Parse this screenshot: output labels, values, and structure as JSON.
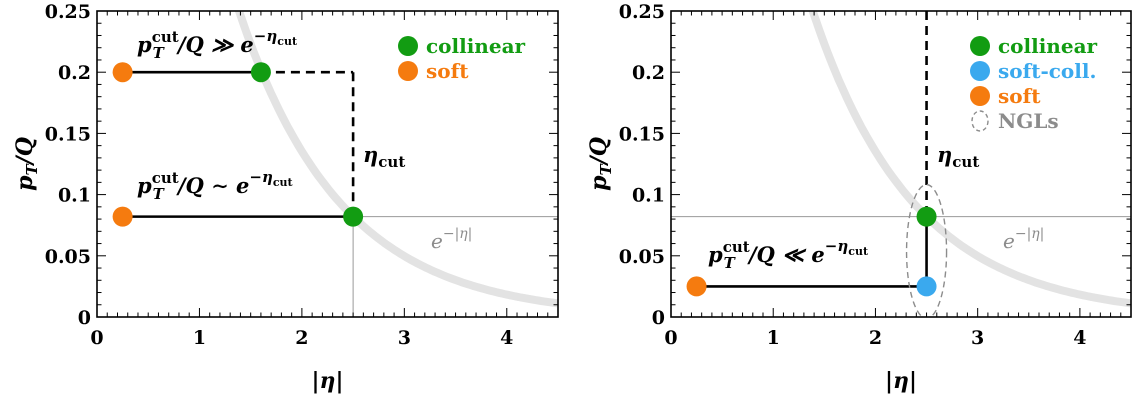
{
  "colors": {
    "collinear": "#129c12",
    "soft": "#f57b0f",
    "soft_coll": "#3aa9ee",
    "ngl": "#8c8c8c",
    "curve": "#e3e3e3",
    "thin_line": "#999999"
  },
  "chart_data": [
    {
      "type": "scatter",
      "xlabel": "|η|",
      "ylabel": "p_T/Q",
      "xlim": [
        0,
        4.5
      ],
      "ylim": [
        0,
        0.25
      ],
      "x_ticks": [
        "0",
        "1",
        "2",
        "3",
        "4"
      ],
      "y_ticks": [
        "0",
        "0.05",
        "0.1",
        "0.15",
        "0.2",
        "0.25"
      ],
      "eta_cut": 2.5,
      "grid": false,
      "legend_position": "top-right",
      "legend": [
        {
          "label": "collinear",
          "color": "collinear"
        },
        {
          "label": "soft",
          "color": "soft"
        }
      ],
      "points": [
        {
          "series": "soft",
          "x": 0.25,
          "y": 0.2
        },
        {
          "series": "collinear",
          "x": 1.6,
          "y": 0.2
        },
        {
          "series": "soft",
          "x": 0.25,
          "y": 0.082
        },
        {
          "series": "collinear",
          "x": 2.5,
          "y": 0.082
        }
      ],
      "solid_segments": [
        {
          "x": [
            0.25,
            1.6
          ],
          "y": [
            0.2,
            0.2
          ]
        },
        {
          "x": [
            0.25,
            2.5
          ],
          "y": [
            0.082,
            0.082
          ]
        }
      ],
      "dashed_segments": [
        {
          "x": [
            1.6,
            2.5
          ],
          "y": [
            0.2,
            0.2
          ]
        },
        {
          "x": [
            2.5,
            2.5
          ],
          "y": [
            0.2,
            0.082
          ]
        }
      ],
      "thin_lines": [
        {
          "x": [
            2.5,
            4.5
          ],
          "y": [
            0.082,
            0.082
          ]
        },
        {
          "x": [
            2.5,
            2.5
          ],
          "y": [
            0.082,
            0
          ]
        }
      ],
      "annotations": {
        "regime": {
          "base": "p",
          "sub": "T",
          "sup": "cut",
          "rest": "/Q ≫ e",
          "exp": "−η",
          "exp_sub": "cut"
        },
        "regime2": {
          "base": "p",
          "sub": "T",
          "sup": "cut",
          "rest": "/Q ∼ e",
          "exp": "−η",
          "exp_sub": "cut"
        },
        "eta_cut": {
          "base": "η",
          "sub": "cut"
        },
        "curve": {
          "base": "e",
          "exp": "−|η|"
        }
      }
    },
    {
      "type": "scatter",
      "xlabel": "|η|",
      "ylabel": "p_T/Q",
      "xlim": [
        0,
        4.5
      ],
      "ylim": [
        0,
        0.25
      ],
      "x_ticks": [
        "0",
        "1",
        "2",
        "3",
        "4"
      ],
      "y_ticks": [
        "0",
        "0.05",
        "0.1",
        "0.15",
        "0.2",
        "0.25"
      ],
      "eta_cut": 2.5,
      "grid": false,
      "legend_position": "top-right",
      "legend": [
        {
          "label": "collinear",
          "color": "collinear"
        },
        {
          "label": "soft-coll.",
          "color": "soft_coll"
        },
        {
          "label": "soft",
          "color": "soft"
        },
        {
          "label": "NGLs",
          "color": "ngl"
        }
      ],
      "points": [
        {
          "series": "soft",
          "x": 0.25,
          "y": 0.025
        },
        {
          "series": "soft-coll.",
          "x": 2.5,
          "y": 0.025
        },
        {
          "series": "collinear",
          "x": 2.5,
          "y": 0.082
        }
      ],
      "solid_segments": [
        {
          "x": [
            0.25,
            2.5
          ],
          "y": [
            0.025,
            0.025
          ]
        },
        {
          "x": [
            2.5,
            2.5
          ],
          "y": [
            0.025,
            0.082
          ]
        }
      ],
      "dashed_segments": [
        {
          "x": [
            2.5,
            2.5
          ],
          "y": [
            0.25,
            0.082
          ]
        }
      ],
      "thin_lines": [
        {
          "x": [
            0,
            4.5
          ],
          "y": [
            0.082,
            0.082
          ]
        }
      ],
      "annotations": {
        "regime": {
          "base": "p",
          "sub": "T",
          "sup": "cut",
          "rest": "/Q ≪ e",
          "exp": "−η",
          "exp_sub": "cut"
        },
        "eta_cut": {
          "base": "η",
          "sub": "cut"
        },
        "curve": {
          "base": "e",
          "exp": "−|η|"
        }
      }
    }
  ]
}
